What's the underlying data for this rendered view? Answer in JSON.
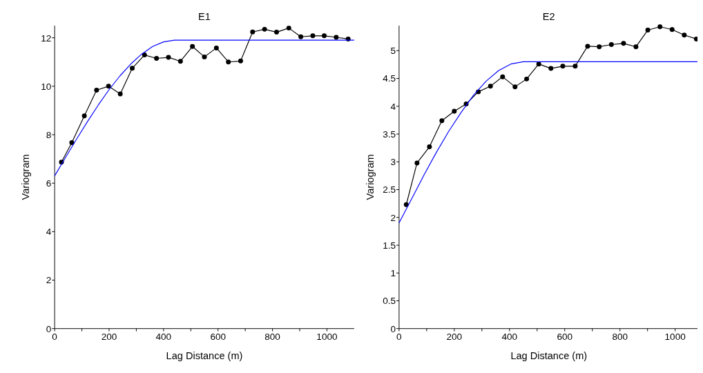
{
  "chart_data": [
    {
      "type": "line",
      "title": "E1",
      "xlabel": "Lag Distance (m)",
      "ylabel": "Variogram",
      "xlim": [
        0,
        1100
      ],
      "xticks": [
        0,
        {
          "value": 100,
          "label": null
        },
        200,
        {
          "value": 300,
          "label": null
        },
        400,
        {
          "value": 500,
          "label": null
        },
        600,
        {
          "value": 700,
          "label": null
        },
        800,
        {
          "value": 900,
          "label": null
        },
        1000
      ],
      "ylim": [
        0,
        12.5
      ],
      "yticks": [
        0,
        2,
        4,
        6,
        8,
        10,
        12
      ],
      "series": [
        {
          "color": "#000000",
          "marker": "circle",
          "x": [
            25,
            63,
            109,
            154,
            198,
            241,
            285,
            330,
            374,
            418,
            462,
            506,
            550,
            594,
            638,
            683,
            727,
            771,
            815,
            860,
            904,
            948,
            990,
            1034,
            1078
          ],
          "values": [
            6.87,
            7.67,
            8.78,
            9.84,
            10.0,
            9.68,
            10.74,
            11.29,
            11.15,
            11.19,
            11.03,
            11.64,
            11.21,
            11.58,
            11.0,
            11.04,
            12.24,
            12.35,
            12.23,
            12.4,
            12.04,
            12.08,
            12.08,
            12.02,
            11.95
          ]
        },
        {
          "color": "#0000ff",
          "marker": "none",
          "x": [
            0,
            40,
            80,
            120,
            160,
            200,
            240,
            280,
            320,
            360,
            400,
            440,
            1100
          ],
          "values": [
            6.3,
            7.06,
            7.81,
            8.53,
            9.22,
            9.86,
            10.43,
            10.92,
            11.33,
            11.64,
            11.83,
            11.9,
            11.9
          ]
        }
      ]
    },
    {
      "type": "line",
      "title": "E2",
      "xlabel": "Lag Distance (m)",
      "ylabel": "Variogram",
      "xlim": [
        0,
        1085
      ],
      "xticks": [
        0,
        {
          "value": 100,
          "label": null
        },
        200,
        {
          "value": 300,
          "label": null
        },
        400,
        {
          "value": 500,
          "label": null
        },
        600,
        {
          "value": 700,
          "label": null
        },
        800,
        {
          "value": 900,
          "label": null
        },
        1000
      ],
      "ylim": [
        0,
        5.45
      ],
      "yticks": [
        0,
        0.5,
        1,
        1.5,
        2,
        2.5,
        3,
        3.5,
        4,
        4.5,
        5
      ],
      "series": [
        {
          "color": "#000000",
          "marker": "circle",
          "x": [
            26,
            65,
            110,
            155,
            200,
            243,
            287,
            331,
            375,
            420,
            462,
            506,
            550,
            593,
            638,
            683,
            725,
            769,
            813,
            858,
            901,
            945,
            989,
            1033,
            1077
          ],
          "values": [
            2.23,
            2.98,
            3.27,
            3.74,
            3.91,
            4.04,
            4.26,
            4.36,
            4.53,
            4.35,
            4.49,
            4.76,
            4.68,
            4.72,
            4.72,
            5.08,
            5.07,
            5.11,
            5.13,
            5.07,
            5.37,
            5.43,
            5.38,
            5.28,
            5.21
          ]
        },
        {
          "color": "#0000ff",
          "marker": "none",
          "x": [
            0,
            45,
            90,
            135,
            180,
            225,
            270,
            315,
            360,
            405,
            450,
            1085
          ],
          "values": [
            1.9,
            2.33,
            2.76,
            3.17,
            3.55,
            3.89,
            4.2,
            4.45,
            4.64,
            4.76,
            4.8,
            4.8
          ]
        }
      ]
    }
  ]
}
